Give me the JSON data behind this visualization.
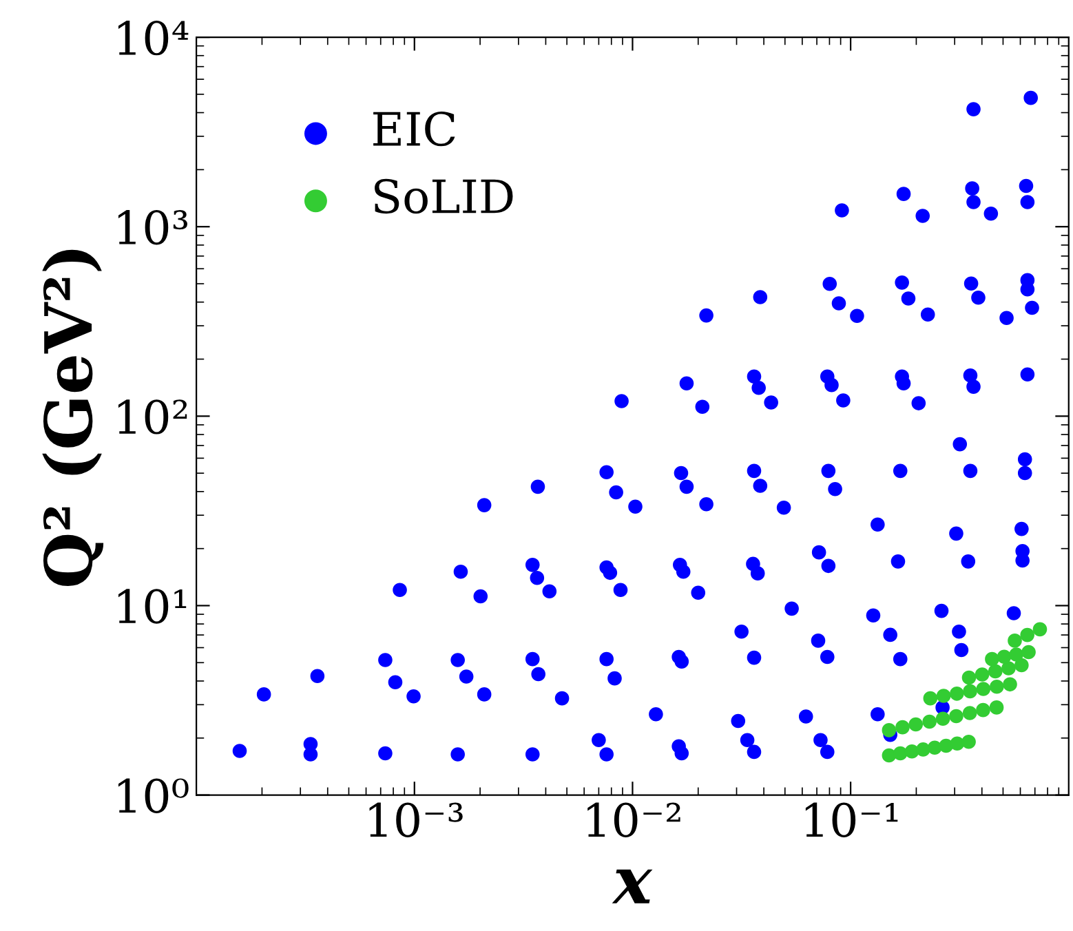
{
  "chart_data": {
    "type": "scatter",
    "xlabel": "x",
    "ylabel": "Q² (GeV²)",
    "log": "xy",
    "grid": false,
    "legend": "top left",
    "marker": "circle",
    "xlim": [
      0.0001,
      1
    ],
    "xticks": [
      {
        "value": 0.001,
        "label": "10⁻³"
      },
      {
        "value": 0.01,
        "label": "10⁻²"
      },
      {
        "value": 0.1,
        "label": "10⁻¹"
      }
    ],
    "ylim": [
      1,
      10000
    ],
    "yticks": [
      {
        "value": 1,
        "label": "10⁰"
      },
      {
        "value": 10,
        "label": "10¹"
      },
      {
        "value": 100,
        "label": "10²"
      },
      {
        "value": 1000,
        "label": "10³"
      },
      {
        "value": 10000,
        "label": "10⁴"
      }
    ],
    "series": [
      {
        "name": "EIC",
        "color": "#0000ff",
        "x": [
          0.000158,
          0.000204,
          0.000334,
          0.000334,
          0.000359,
          0.000857,
          0.000735,
          0.000817,
          0.000991,
          0.000735,
          0.00163,
          0.00209,
          0.00201,
          0.00158,
          0.00173,
          0.00209,
          0.00158,
          0.00368,
          0.00348,
          0.00365,
          0.00416,
          0.00348,
          0.0037,
          0.00475,
          0.00348,
          0.0076,
          0.00841,
          0.0103,
          0.0076,
          0.00789,
          0.00881,
          0.0076,
          0.00828,
          0.007,
          0.0076,
          0.0167,
          0.0177,
          0.0218,
          0.0165,
          0.0171,
          0.02,
          0.0163,
          0.0168,
          0.0128,
          0.0163,
          0.0168,
          0.0361,
          0.0385,
          0.0494,
          0.0357,
          0.0375,
          0.0316,
          0.0361,
          0.0537,
          0.0305,
          0.0336,
          0.0361,
          0.0791,
          0.0849,
          0.0716,
          0.0791,
          0.071,
          0.0782,
          0.0624,
          0.0728,
          0.0782,
          0.169,
          0.133,
          0.165,
          0.127,
          0.152,
          0.169,
          0.133,
          0.152,
          0.317,
          0.354,
          0.305,
          0.346,
          0.261,
          0.314,
          0.322,
          0.264,
          0.63,
          0.63,
          0.608,
          0.614,
          0.614,
          0.56,
          0.00891,
          0.0177,
          0.0209,
          0.0218,
          0.0385,
          0.0361,
          0.0379,
          0.0432,
          0.0802,
          0.0883,
          0.107,
          0.0912,
          0.0782,
          0.0818,
          0.0925,
          0.175,
          0.214,
          0.172,
          0.184,
          0.226,
          0.172,
          0.175,
          0.205,
          0.366,
          0.361,
          0.366,
          0.44,
          0.357,
          0.385,
          0.519,
          0.354,
          0.366,
          0.67,
          0.638,
          0.647,
          0.647,
          0.647,
          0.679,
          0.647
        ],
        "values": [
          1.71,
          3.4,
          1.64,
          1.86,
          4.25,
          12.1,
          5.16,
          3.94,
          3.32,
          1.66,
          15.1,
          33.9,
          11.2,
          5.16,
          4.22,
          3.4,
          1.64,
          42.4,
          16.4,
          14.0,
          11.9,
          5.22,
          4.35,
          3.24,
          1.64,
          50.6,
          39.6,
          33.3,
          15.9,
          14.9,
          12.1,
          5.22,
          4.13,
          1.95,
          1.64,
          50.1,
          42.4,
          34.3,
          16.4,
          15.1,
          11.7,
          5.36,
          5.07,
          2.67,
          1.81,
          1.66,
          51.4,
          42.9,
          32.9,
          16.6,
          14.8,
          7.29,
          5.31,
          9.64,
          2.46,
          1.95,
          1.69,
          51.4,
          41.2,
          19.1,
          16.2,
          6.53,
          5.36,
          2.6,
          1.95,
          1.69,
          51.4,
          26.8,
          17.1,
          8.87,
          7.01,
          5.22,
          2.67,
          2.08,
          71.1,
          51.4,
          24.0,
          17.1,
          9.38,
          7.29,
          5.83,
          2.9,
          59.2,
          50.1,
          25.4,
          19.4,
          17.3,
          9.12,
          120,
          149,
          112,
          340,
          425,
          162,
          141,
          118,
          499,
          394,
          338,
          1219,
          162,
          146,
          121,
          1489,
          1140,
          507,
          418,
          344,
          162,
          149,
          117,
          4169,
          1592,
          1349,
          1172,
          501,
          422,
          330,
          164,
          143,
          4786,
          1641,
          1349,
          522,
          467,
          373,
          166
        ]
      },
      {
        "name": "SoLID",
        "color": "#33cc33",
        "x": [
          0.15,
          0.169,
          0.191,
          0.215,
          0.243,
          0.274,
          0.308,
          0.348,
          0.15,
          0.173,
          0.199,
          0.23,
          0.265,
          0.305,
          0.352,
          0.405,
          0.467,
          0.232,
          0.267,
          0.307,
          0.353,
          0.406,
          0.468,
          0.538,
          0.349,
          0.401,
          0.461,
          0.53,
          0.608,
          0.445,
          0.506,
          0.575,
          0.655,
          0.566,
          0.646,
          0.738
        ],
        "values": [
          1.62,
          1.66,
          1.7,
          1.74,
          1.78,
          1.82,
          1.87,
          1.91,
          2.2,
          2.28,
          2.36,
          2.44,
          2.53,
          2.61,
          2.71,
          2.81,
          2.9,
          3.24,
          3.34,
          3.43,
          3.53,
          3.63,
          3.73,
          3.84,
          4.17,
          4.33,
          4.5,
          4.67,
          4.85,
          5.22,
          5.37,
          5.52,
          5.68,
          6.53,
          7.0,
          7.5
        ]
      }
    ]
  }
}
